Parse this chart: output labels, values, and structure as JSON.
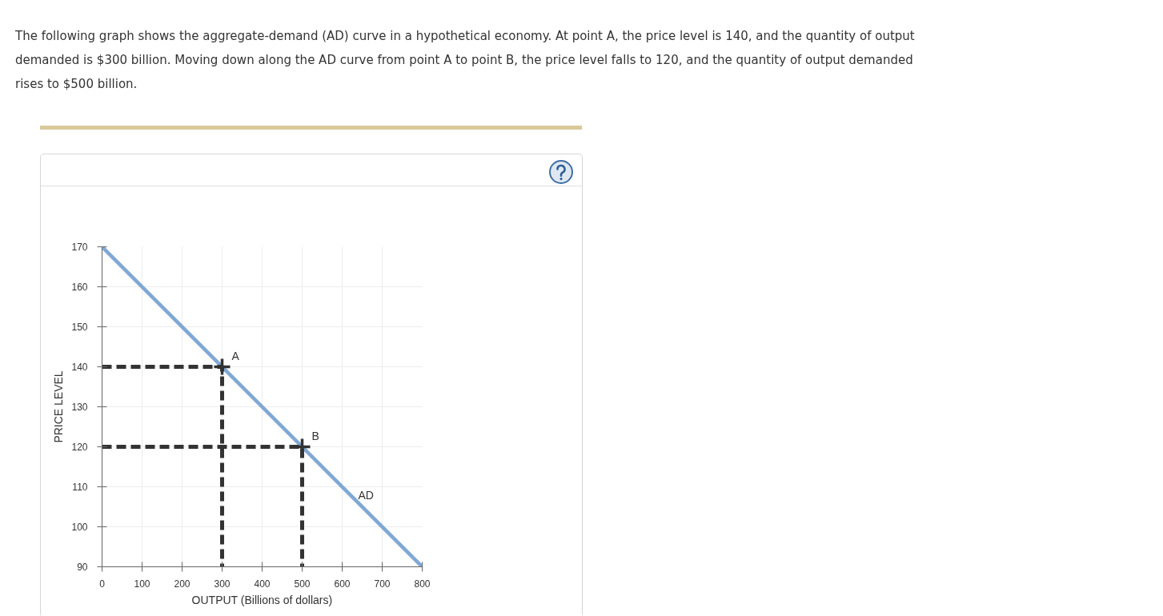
{
  "chart_data": {
    "type": "line",
    "xlabel": "OUTPUT (Billions of dollars)",
    "ylabel": "PRICE LEVEL",
    "x": [
      0,
      800
    ],
    "xlim": [
      0,
      800
    ],
    "xticks": [
      0,
      100,
      200,
      300,
      400,
      500,
      600,
      700,
      800
    ],
    "ylim": [
      90,
      170
    ],
    "yticks": [
      90,
      100,
      110,
      120,
      130,
      140,
      150,
      160,
      170
    ],
    "grid": true,
    "series": [
      {
        "name": "AD",
        "color": "#80a8d4",
        "values": [
          170,
          90
        ]
      },
      {
        "type": "line",
        "x": [
          0,
          300,
          300
        ],
        "values": [
          140,
          140,
          90
        ],
        "color": "#333333",
        "line_style": "dashed"
      },
      {
        "type": "line",
        "x": [
          0,
          500,
          500
        ],
        "values": [
          120,
          120,
          90
        ],
        "color": "#333333",
        "line_style": "dashed"
      },
      {
        "type": "scatter",
        "x": [
          300,
          500
        ],
        "values": [
          140,
          120
        ],
        "color": "#333333",
        "marker": "cross"
      }
    ],
    "annotations": [
      "The following graph shows the aggregate-demand (AD) curve in a hypothetical economy. At point A, the price level is 140, and the quantity of output demanded is $300 billion. Moving down along the AD curve from point A to point B, the price level falls to 120, and the quantity of output demanded rises to $500 billion.",
      {
        "text": "A",
        "x": 300,
        "y": 140
      },
      {
        "text": "B",
        "x": 500,
        "y": 120
      }
    ]
  }
}
